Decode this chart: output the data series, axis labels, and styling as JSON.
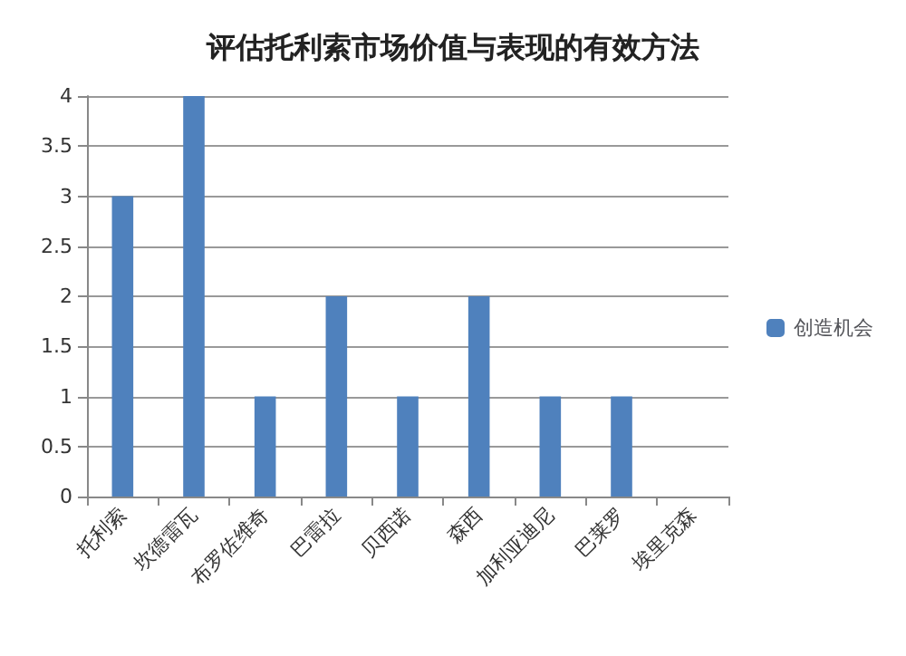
{
  "chart_data": {
    "type": "bar",
    "title": "评估托利索市场价值与表现的有效方法",
    "categories": [
      "托利索",
      "坎德雷瓦",
      "布罗佐维奇",
      "巴雷拉",
      "贝西诺",
      "森西",
      "加利亚迪尼",
      "巴莱罗",
      "埃里克森"
    ],
    "series": [
      {
        "name": "创造机会",
        "color": "#4f81bd",
        "values": [
          3,
          4,
          1,
          2,
          1,
          2,
          1,
          1,
          0
        ]
      }
    ],
    "ylim": [
      0,
      4
    ],
    "yticks": [
      0,
      0.5,
      1,
      1.5,
      2,
      2.5,
      3,
      3.5,
      4
    ],
    "grid": "y",
    "legend": "right"
  }
}
